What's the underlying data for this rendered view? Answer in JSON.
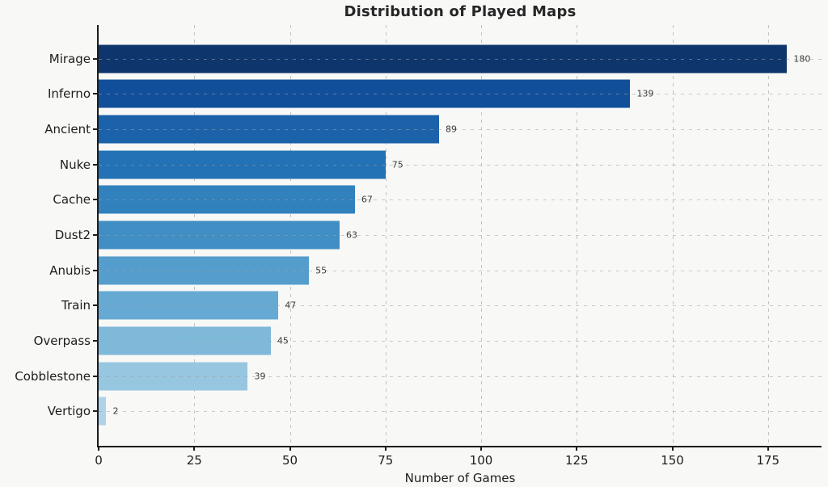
{
  "figure": {
    "background_color": "#f8f8f6",
    "spine_color": "#1c1c1c"
  },
  "chart_data": {
    "type": "bar",
    "orientation": "horizontal",
    "title": "Distribution of Played Maps",
    "xlabel": "Number of Games",
    "ylabel": "",
    "categories": [
      "Mirage",
      "Inferno",
      "Ancient",
      "Nuke",
      "Cache",
      "Dust2",
      "Anubis",
      "Train",
      "Overpass",
      "Cobblestone",
      "Vertigo"
    ],
    "values": [
      180,
      139,
      89,
      75,
      67,
      63,
      55,
      47,
      45,
      39,
      2
    ],
    "bar_colors": [
      "#0e356c",
      "#124f9a",
      "#1b62ab",
      "#2372b5",
      "#3181bd",
      "#418ec4",
      "#549dcc",
      "#66a9d3",
      "#7fb9da",
      "#97c6e1",
      "#aed2e7"
    ],
    "value_labels": [
      "180",
      "139",
      "89",
      "75",
      "67",
      "63",
      "55",
      "47",
      "45",
      "39",
      "2"
    ],
    "xticks": [
      0,
      25,
      50,
      75,
      100,
      125,
      150,
      175
    ],
    "xlim": [
      0,
      189
    ],
    "grid": true,
    "grid_style": "dashed",
    "legend": false
  }
}
